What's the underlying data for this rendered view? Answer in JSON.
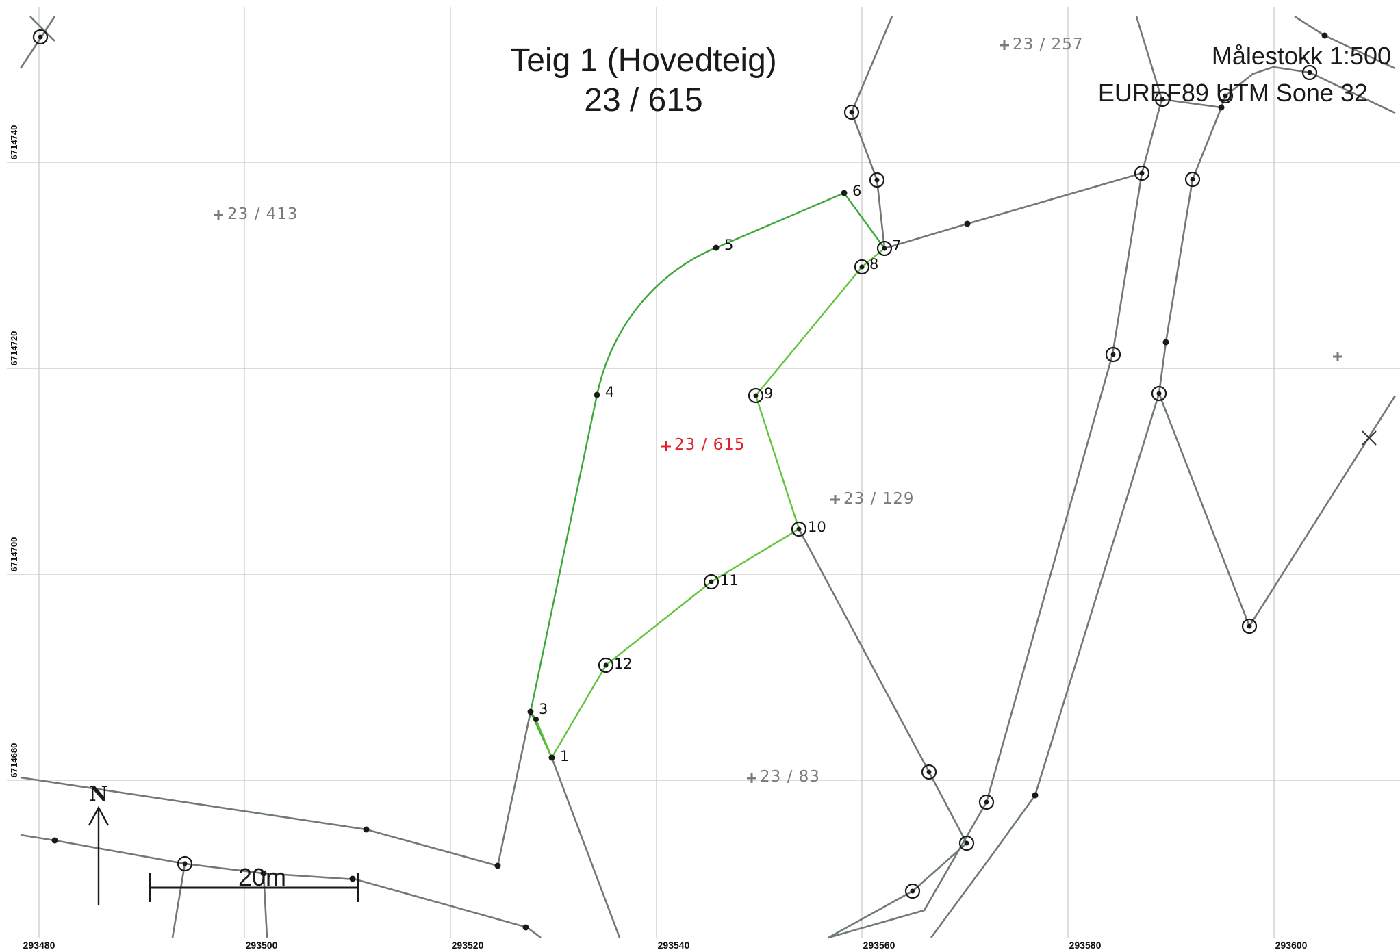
{
  "title": {
    "line1": "Teig 1 (Hovedteig)",
    "line2": "23 / 615"
  },
  "map_info": {
    "scale": "Målestokk 1:500",
    "crs": "EUREF89 UTM Sone 32"
  },
  "axes": {
    "easting_labels": [
      "293480",
      "293500",
      "293520",
      "293540",
      "293560",
      "293580",
      "293600"
    ],
    "northing_labels": [
      "6714740",
      "6714720",
      "6714700",
      "6714680"
    ]
  },
  "parcels": {
    "p413": "23 / 413",
    "p257": "23 / 257",
    "p615": "23 / 615",
    "p129": "23 / 129",
    "p83": "23 / 83"
  },
  "boundary_points": [
    "1",
    "3",
    "4",
    "5",
    "6",
    "7",
    "8",
    "9",
    "10",
    "11",
    "12"
  ],
  "scale_bar": {
    "label": "20m"
  },
  "north_arrow": {
    "label": "N"
  },
  "colors": {
    "main_parcel": "#e0202a",
    "boundary_green": "#3da83a",
    "other_boundary": "#6f7a78",
    "grid": "#c8c8c8"
  }
}
